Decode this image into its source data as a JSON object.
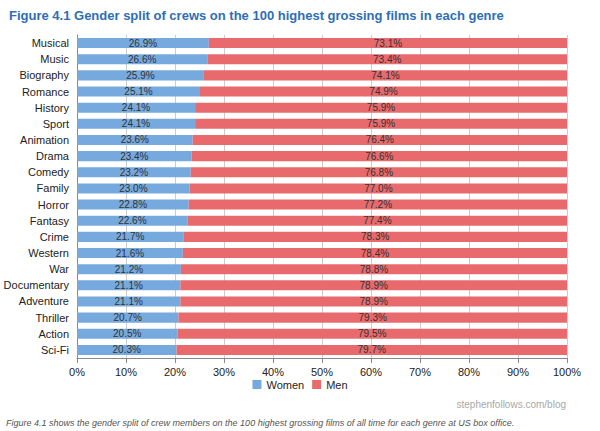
{
  "chart_data": {
    "type": "bar",
    "title": "Figure 4.1 Gender split of crews on the 100 highest grossing films in each genre",
    "caption": "Figure 4.1 shows the gender split of crew members on the 100 highest grossing films of all time for each genre at US box office.",
    "annotations": [
      "stephenfollows.com/blog"
    ],
    "orientation": "horizontal",
    "stacked": true,
    "data_labels": true,
    "grid": true,
    "legend": "bottom",
    "categories": [
      "Musical",
      "Music",
      "Biography",
      "Romance",
      "History",
      "Sport",
      "Animation",
      "Drama",
      "Comedy",
      "Family",
      "Horror",
      "Fantasy",
      "Crime",
      "Western",
      "War",
      "Documentary",
      "Adventure",
      "Thriller",
      "Action",
      "Sci-Fi"
    ],
    "series": [
      {
        "name": "Women",
        "color": "#76a9dd",
        "values": [
          26.9,
          26.6,
          25.9,
          25.1,
          24.1,
          24.1,
          23.6,
          23.4,
          23.2,
          23.0,
          22.8,
          22.6,
          21.7,
          21.6,
          21.2,
          21.1,
          21.1,
          20.7,
          20.5,
          20.3
        ],
        "value_labels": [
          "26.9%",
          "26.6%",
          "25.9%",
          "25.1%",
          "24.1%",
          "24.1%",
          "23.6%",
          "23.4%",
          "23.2%",
          "23.0%",
          "22.8%",
          "22.6%",
          "21.7%",
          "21.6%",
          "21.2%",
          "21.1%",
          "21.1%",
          "20.7%",
          "20.5%",
          "20.3%"
        ]
      },
      {
        "name": "Men",
        "color": "#e86a6c",
        "values": [
          73.1,
          73.4,
          74.1,
          74.9,
          75.9,
          75.9,
          76.4,
          76.6,
          76.8,
          77.0,
          77.2,
          77.4,
          78.3,
          78.4,
          78.8,
          78.9,
          78.9,
          79.3,
          79.5,
          79.7
        ],
        "value_labels": [
          "73.1%",
          "73.4%",
          "74.1%",
          "74.9%",
          "75.9%",
          "75.9%",
          "76.4%",
          "76.6%",
          "76.8%",
          "77.0%",
          "77.2%",
          "77.4%",
          "78.3%",
          "78.4%",
          "78.8%",
          "78.9%",
          "78.9%",
          "79.3%",
          "79.5%",
          "79.7%"
        ]
      }
    ],
    "xlim": [
      0,
      100
    ],
    "xticks": [
      {
        "value": 0,
        "label": "0%"
      },
      {
        "value": 10,
        "label": "10%"
      },
      {
        "value": 20,
        "label": "20%"
      },
      {
        "value": 30,
        "label": "30%"
      },
      {
        "value": 40,
        "label": "40%"
      },
      {
        "value": 50,
        "label": "50%"
      },
      {
        "value": 60,
        "label": "60%"
      },
      {
        "value": 70,
        "label": "70%"
      },
      {
        "value": 80,
        "label": "80%"
      },
      {
        "value": 90,
        "label": "90%"
      },
      {
        "value": 100,
        "label": "100%"
      }
    ]
  }
}
